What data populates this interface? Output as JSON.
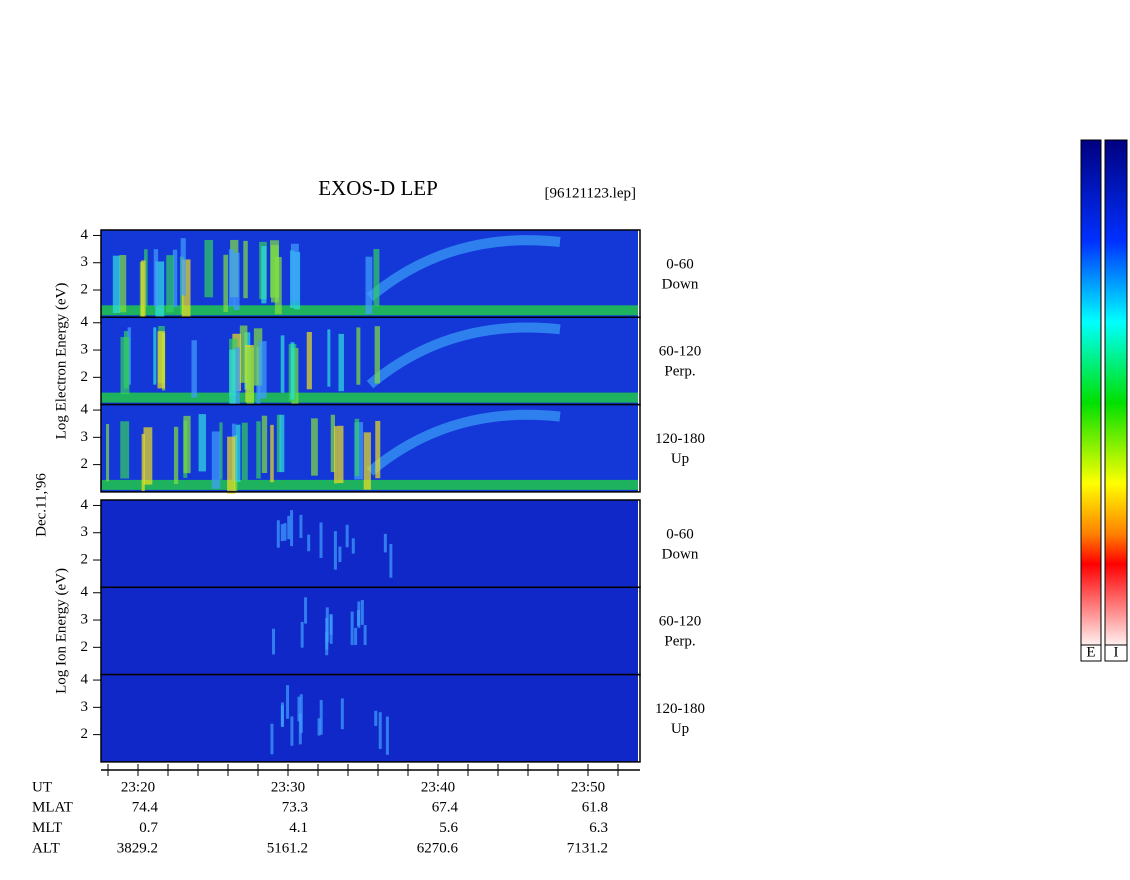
{
  "header": {
    "title": "EXOS-D LEP",
    "file": "[96121123.lep]"
  },
  "date": "Dec.11,'96",
  "groups": [
    {
      "label": "Log Electron Energy (eV)",
      "panels": [
        {
          "range": "0-60",
          "direction": "Down"
        },
        {
          "range": "60-120",
          "direction": "Perp."
        },
        {
          "range": "120-180",
          "direction": "Up"
        }
      ]
    },
    {
      "label": "Log Ion Energy (eV)",
      "panels": [
        {
          "range": "0-60",
          "direction": "Down"
        },
        {
          "range": "60-120",
          "direction": "Perp."
        },
        {
          "range": "120-180",
          "direction": "Up"
        }
      ]
    }
  ],
  "energy_axis": {
    "ylim": [
      1,
      4.2
    ],
    "yticks": [
      2,
      3,
      4
    ]
  },
  "ephemeris": [
    {
      "name": "UT",
      "values": [
        "23:20",
        "23:30",
        "23:40",
        "23:50"
      ]
    },
    {
      "name": "MLAT",
      "values": [
        74.4,
        73.3,
        67.4,
        61.8
      ]
    },
    {
      "name": "MLT",
      "values": [
        0.7,
        4.1,
        5.6,
        6.3
      ]
    },
    {
      "name": "ALT",
      "values": [
        3829.2,
        5161.2,
        6270.6,
        7131.2
      ]
    }
  ],
  "colorbar": {
    "labels": [
      "E",
      "I"
    ]
  }
}
